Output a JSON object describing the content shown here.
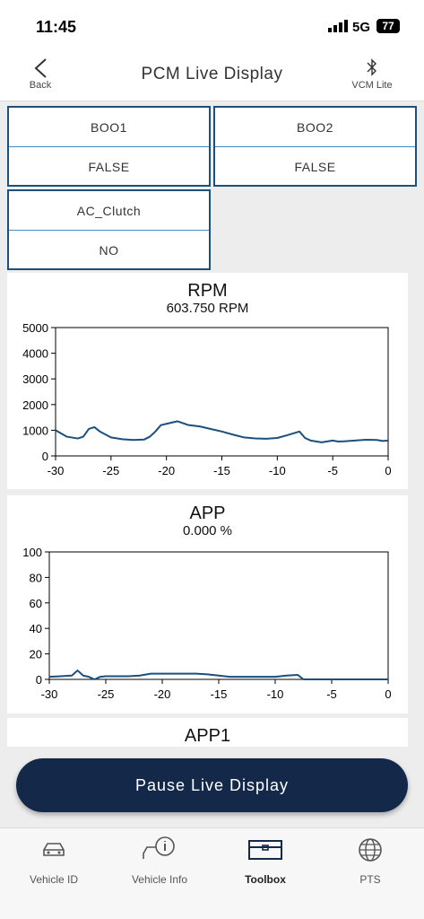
{
  "status_bar": {
    "time": "11:45",
    "network": "5G",
    "battery": "77"
  },
  "header": {
    "back": "Back",
    "title": "PCM Live Display",
    "right": "VCM Lite"
  },
  "cells": [
    {
      "label": "BOO1",
      "value": "FALSE"
    },
    {
      "label": "BOO2",
      "value": "FALSE"
    },
    {
      "label": "AC_Clutch",
      "value": "NO"
    }
  ],
  "chart_data": [
    {
      "type": "line",
      "title": "RPM",
      "subtitle": "603.750 RPM",
      "x": [
        -30,
        -29,
        -28,
        -27.5,
        -27,
        -26.5,
        -26,
        -25,
        -24,
        -23,
        -22,
        -21.5,
        -21,
        -20.5,
        -20,
        -19,
        -18,
        -17,
        -16,
        -15,
        -14,
        -13,
        -12,
        -11,
        -10,
        -9,
        -8,
        -7.5,
        -7,
        -6,
        -5,
        -4.5,
        -4,
        -3,
        -2,
        -1,
        -0.5,
        0
      ],
      "values": [
        1000,
        750,
        680,
        750,
        1050,
        1120,
        950,
        720,
        650,
        620,
        640,
        750,
        950,
        1200,
        1250,
        1350,
        1200,
        1150,
        1050,
        950,
        830,
        720,
        680,
        670,
        700,
        820,
        950,
        700,
        600,
        530,
        600,
        560,
        570,
        600,
        630,
        620,
        580,
        600
      ],
      "color": "#1a4f7e",
      "xlim": [
        -30,
        0
      ],
      "xticks": [
        -30,
        -25,
        -20,
        -15,
        -10,
        -5,
        0
      ],
      "ylim": [
        0,
        5000
      ],
      "yticks": [
        0,
        1000,
        2000,
        3000,
        4000,
        5000
      ]
    },
    {
      "type": "line",
      "title": "APP",
      "subtitle": "0.000 %",
      "x": [
        -30,
        -29,
        -28,
        -27.5,
        -27,
        -26.5,
        -26,
        -25.5,
        -25,
        -23,
        -22,
        -21,
        -17,
        -16,
        -15,
        -14,
        -10,
        -9,
        -8,
        -7.5,
        0
      ],
      "values": [
        2,
        2.5,
        3,
        7,
        3,
        2,
        0,
        2,
        2.5,
        2.5,
        3,
        4.5,
        4.5,
        4,
        3,
        2,
        2,
        3,
        3.5,
        0,
        0
      ],
      "color": "#1a4f7e",
      "xlim": [
        -30,
        0
      ],
      "xticks": [
        -30,
        -25,
        -20,
        -15,
        -10,
        -5,
        0
      ],
      "ylim": [
        0,
        100
      ],
      "yticks": [
        0,
        20,
        40,
        60,
        80,
        100
      ]
    },
    {
      "type": "line",
      "title": "APP1"
    }
  ],
  "button": "Pause Live Display",
  "nav": [
    "Vehicle ID",
    "Vehicle Info",
    "Toolbox",
    "PTS"
  ]
}
